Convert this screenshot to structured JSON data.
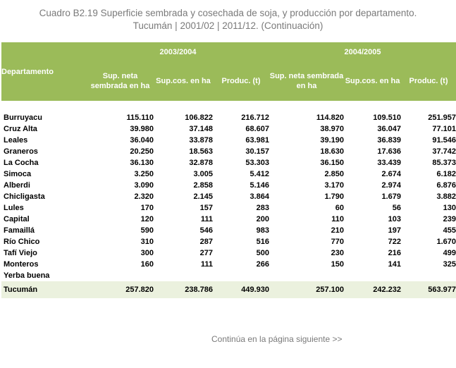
{
  "title": {
    "line1": "Cuadro B2.19 Superficie sembrada y cosechada de soja, y producción por departamento.",
    "line2": "Tucumán | 2001/02 | 2011/12. (Continuación)"
  },
  "table": {
    "dept_header": "Departamento",
    "period1": "2003/2004",
    "period2": "2004/2005",
    "col_sup_neta": "Sup. neta sembrada en ha",
    "col_sup_cos": "Sup.cos. en ha",
    "col_produc": "Produc. (t)",
    "rows": [
      {
        "dept": "Burruyacu",
        "v": [
          "115.110",
          "106.822",
          "216.712",
          "114.820",
          "109.510",
          "251.957"
        ]
      },
      {
        "dept": "Cruz Alta",
        "v": [
          "39.980",
          "37.148",
          "68.607",
          "38.970",
          "36.047",
          "77.101"
        ]
      },
      {
        "dept": "Leales",
        "v": [
          "36.040",
          "33.878",
          "63.981",
          "39.190",
          "36.839",
          "91.546"
        ]
      },
      {
        "dept": "Graneros",
        "v": [
          "20.250",
          "18.563",
          "30.157",
          "18.630",
          "17.636",
          "37.742"
        ]
      },
      {
        "dept": "La Cocha",
        "v": [
          "36.130",
          "32.878",
          "53.303",
          "36.150",
          "33.439",
          "85.373"
        ]
      },
      {
        "dept": "Simoca",
        "v": [
          "3.250",
          "3.005",
          "5.412",
          "2.850",
          "2.674",
          "6.182"
        ]
      },
      {
        "dept": "Alberdi",
        "v": [
          "3.090",
          "2.858",
          "5.146",
          "3.170",
          "2.974",
          "6.876"
        ]
      },
      {
        "dept": "Chicligasta",
        "v": [
          "2.320",
          "2.145",
          "3.864",
          "1.790",
          "1.679",
          "3.882"
        ]
      },
      {
        "dept": "Lules",
        "v": [
          "170",
          "157",
          "283",
          "60",
          "56",
          "130"
        ]
      },
      {
        "dept": "Capital",
        "v": [
          "120",
          "111",
          "200",
          "110",
          "103",
          "239"
        ]
      },
      {
        "dept": "Famaillá",
        "v": [
          "590",
          "546",
          "983",
          "210",
          "197",
          "455"
        ]
      },
      {
        "dept": "Río Chico",
        "v": [
          "310",
          "287",
          "516",
          "770",
          "722",
          "1.670"
        ]
      },
      {
        "dept": "Tafí Viejo",
        "v": [
          "300",
          "277",
          "500",
          "230",
          "216",
          "499"
        ]
      },
      {
        "dept": "Monteros",
        "v": [
          "160",
          "111",
          "266",
          "150",
          "141",
          "325"
        ]
      },
      {
        "dept": "Yerba buena",
        "v": [
          "",
          "",
          "",
          "",
          "",
          ""
        ]
      }
    ],
    "total": {
      "dept": "Tucumán",
      "v": [
        "257.820",
        "238.786",
        "449.930",
        "257.100",
        "242.232",
        "563.977"
      ]
    }
  },
  "footer": "Continúa en la página siguiente >>",
  "colors": {
    "header_green": "#9bbb59",
    "total_bg": "#ebf1de",
    "title_gray": "#7a7a7a"
  }
}
